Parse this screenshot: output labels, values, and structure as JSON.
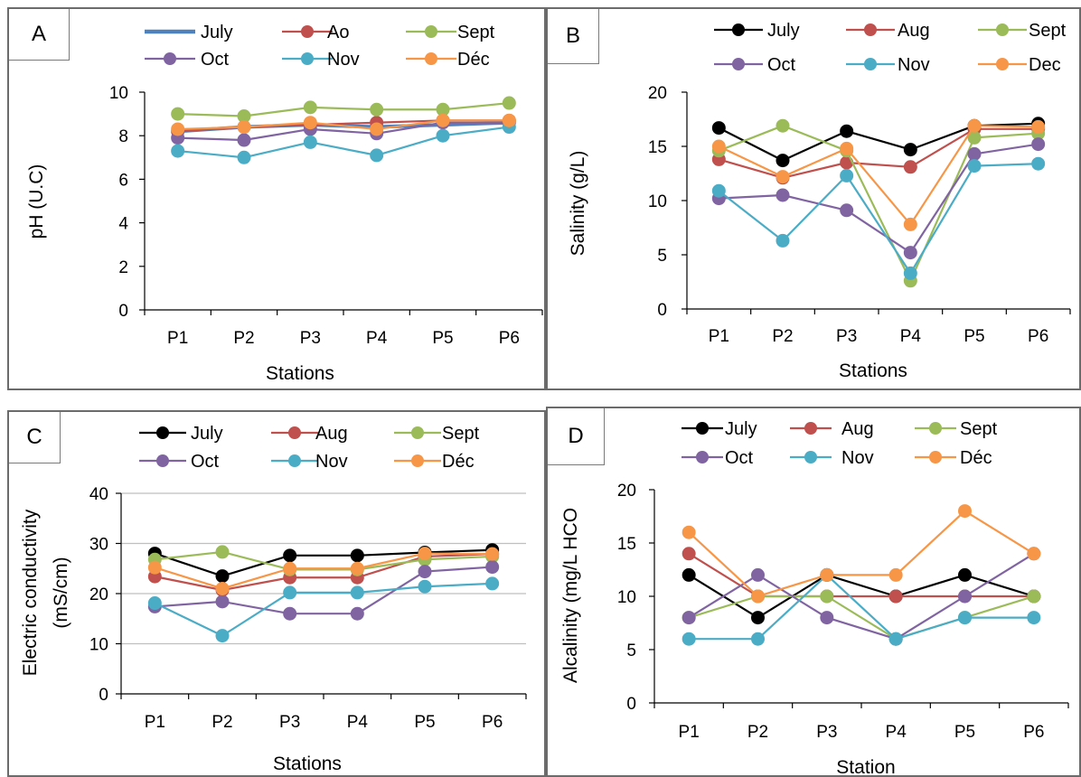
{
  "colors": {
    "black": "#000000",
    "red": "#c0504d",
    "green": "#9bbb59",
    "purple": "#8064a2",
    "cyan": "#4bacc6",
    "orange": "#f79646",
    "blue": "#4f81bd"
  },
  "chart_data": [
    {
      "id": "A",
      "panel_label": "A",
      "type": "line",
      "categories": [
        "P1",
        "P2",
        "P3",
        "P4",
        "P5",
        "P6"
      ],
      "xlabel": "Stations",
      "ylabel": "pH (U.C)",
      "ylim": [
        0,
        10
      ],
      "yticks": [
        0,
        2,
        4,
        6,
        8,
        10
      ],
      "grid": false,
      "legend": "top",
      "series": [
        {
          "name": "July",
          "color": "#4f81bd",
          "marker": "none",
          "values": [
            8.2,
            8.4,
            8.5,
            8.4,
            8.5,
            8.6
          ]
        },
        {
          "name": "Ao",
          "color": "#c0504d",
          "marker": "circle",
          "values": [
            8.2,
            8.4,
            8.5,
            8.6,
            8.7,
            8.7
          ]
        },
        {
          "name": "Sept",
          "color": "#9bbb59",
          "marker": "circle",
          "values": [
            9.0,
            8.9,
            9.3,
            9.2,
            9.2,
            9.5
          ]
        },
        {
          "name": "Oct",
          "color": "#8064a2",
          "marker": "circle",
          "values": [
            7.9,
            7.8,
            8.3,
            8.1,
            8.6,
            8.6
          ]
        },
        {
          "name": "Nov",
          "color": "#4bacc6",
          "marker": "circle",
          "values": [
            7.3,
            7.0,
            7.7,
            7.1,
            8.0,
            8.4
          ]
        },
        {
          "name": "Déc",
          "color": "#f79646",
          "marker": "circle",
          "values": [
            8.3,
            8.4,
            8.6,
            8.3,
            8.7,
            8.7
          ]
        }
      ]
    },
    {
      "id": "B",
      "panel_label": "B",
      "type": "line",
      "categories": [
        "P1",
        "P2",
        "P3",
        "P4",
        "P5",
        "P6"
      ],
      "xlabel": "Stations",
      "ylabel": "Salinity (g/L)",
      "ylim": [
        0,
        20
      ],
      "yticks": [
        0,
        5,
        10,
        15,
        20
      ],
      "grid": false,
      "legend": "top",
      "series": [
        {
          "name": "July",
          "color": "#000000",
          "marker": "circle",
          "values": [
            16.7,
            13.7,
            16.4,
            14.7,
            16.9,
            17.1
          ]
        },
        {
          "name": "Aug",
          "color": "#c0504d",
          "marker": "circle",
          "values": [
            13.8,
            12.1,
            13.5,
            13.1,
            16.6,
            16.6
          ]
        },
        {
          "name": "Sept",
          "color": "#9bbb59",
          "marker": "circle",
          "values": [
            14.6,
            16.9,
            14.6,
            2.6,
            15.8,
            16.2
          ]
        },
        {
          "name": "Oct",
          "color": "#8064a2",
          "marker": "circle",
          "values": [
            10.2,
            10.5,
            9.1,
            5.2,
            14.3,
            15.2
          ]
        },
        {
          "name": "Nov",
          "color": "#4bacc6",
          "marker": "circle",
          "values": [
            10.9,
            6.3,
            12.3,
            3.3,
            13.2,
            13.4
          ]
        },
        {
          "name": "Dec",
          "color": "#f79646",
          "marker": "circle",
          "values": [
            15.0,
            12.2,
            14.8,
            7.8,
            16.9,
            16.8
          ]
        }
      ]
    },
    {
      "id": "C",
      "panel_label": "C",
      "type": "line",
      "categories": [
        "P1",
        "P2",
        "P3",
        "P4",
        "P5",
        "P6"
      ],
      "xlabel": "Stations",
      "ylabel": "Electric conductivity",
      "ylabel2": "(mS/cm)",
      "ylim": [
        0,
        40
      ],
      "yticks": [
        0,
        10,
        20,
        30,
        40
      ],
      "grid": true,
      "legend": "top",
      "series": [
        {
          "name": "July",
          "color": "#000000",
          "marker": "circle",
          "values": [
            28.0,
            23.5,
            27.6,
            27.6,
            28.2,
            28.7
          ]
        },
        {
          "name": "Aug",
          "color": "#c0504d",
          "marker": "circle",
          "values": [
            23.4,
            20.7,
            23.2,
            23.2,
            27.4,
            27.9
          ]
        },
        {
          "name": "Sept",
          "color": "#9bbb59",
          "marker": "circle",
          "values": [
            26.8,
            28.3,
            24.8,
            24.8,
            26.8,
            27.4
          ]
        },
        {
          "name": "Oct",
          "color": "#8064a2",
          "marker": "circle",
          "values": [
            17.4,
            18.4,
            16.0,
            16.0,
            24.4,
            25.3
          ]
        },
        {
          "name": "Nov",
          "color": "#4bacc6",
          "marker": "circle",
          "values": [
            18.1,
            11.6,
            20.2,
            20.2,
            21.4,
            22.0
          ]
        },
        {
          "name": "Déc",
          "color": "#f79646",
          "marker": "circle",
          "values": [
            25.2,
            21.0,
            25.0,
            25.0,
            28.0,
            27.9
          ]
        }
      ]
    },
    {
      "id": "D",
      "panel_label": "D",
      "type": "line",
      "categories": [
        "P1",
        "P2",
        "P3",
        "P4",
        "P5",
        "P6"
      ],
      "xlabel": "Station",
      "ylabel": "Alcalinity (mg/L HCO",
      "ylim": [
        0,
        20
      ],
      "yticks": [
        0,
        5,
        10,
        15,
        20
      ],
      "grid": false,
      "legend": "top",
      "series": [
        {
          "name": "July",
          "color": "#000000",
          "marker": "circle",
          "values": [
            12,
            8,
            12,
            10,
            12,
            10
          ]
        },
        {
          "name": "Aug",
          "color": "#c0504d",
          "marker": "circle",
          "values": [
            14,
            10,
            10,
            10,
            10,
            10
          ]
        },
        {
          "name": "Sept",
          "color": "#9bbb59",
          "marker": "circle",
          "values": [
            8,
            10,
            10,
            6,
            8,
            10
          ]
        },
        {
          "name": "Oct",
          "color": "#8064a2",
          "marker": "circle",
          "values": [
            8,
            12,
            8,
            6,
            10,
            14
          ]
        },
        {
          "name": "Nov",
          "color": "#4bacc6",
          "marker": "circle",
          "values": [
            6,
            6,
            12,
            6,
            8,
            8
          ]
        },
        {
          "name": "Déc",
          "color": "#f79646",
          "marker": "circle",
          "values": [
            16,
            10,
            12,
            12,
            18,
            14
          ]
        }
      ]
    }
  ]
}
